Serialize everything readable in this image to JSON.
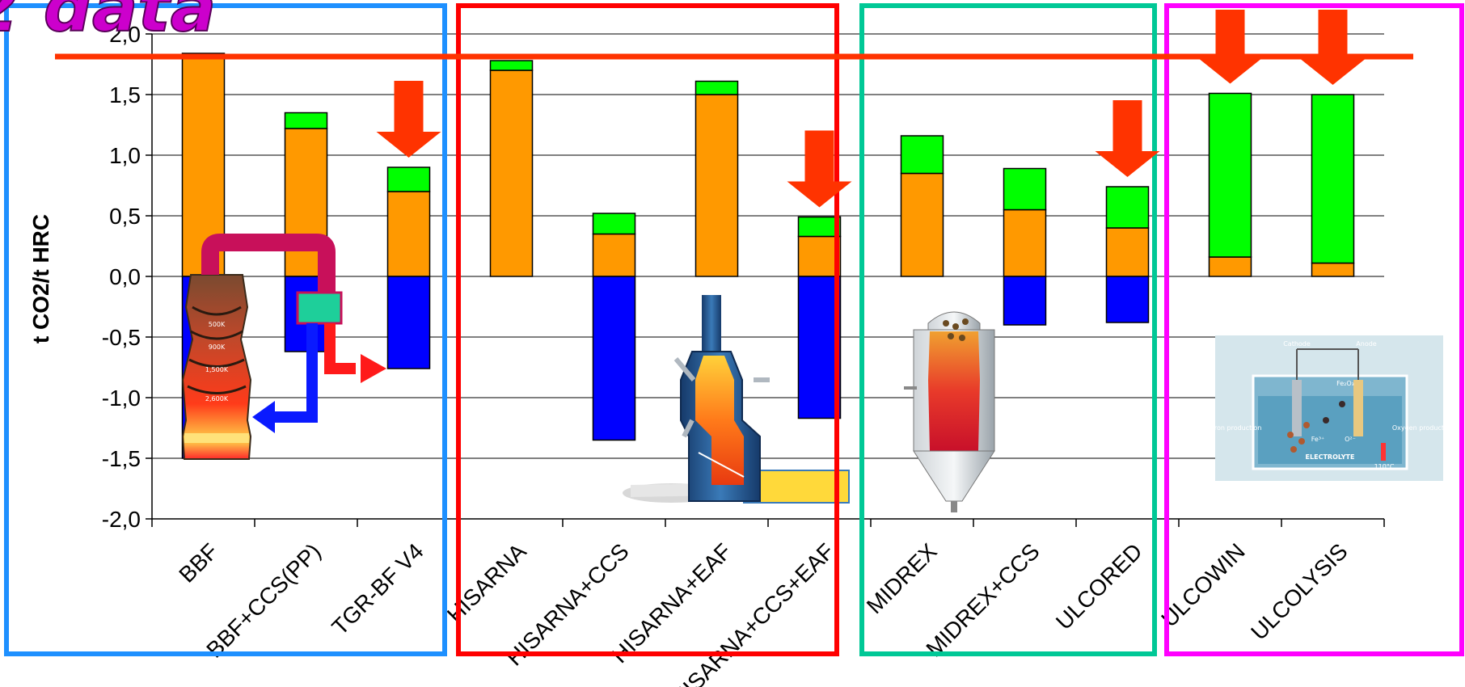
{
  "title_fragment": "2 data",
  "chart_data": {
    "type": "bar",
    "stacked": true,
    "title": "",
    "xlabel": "",
    "ylabel": "t CO2/t HRC",
    "ylim": [
      -2.0,
      2.0
    ],
    "yticks": [
      2.0,
      1.5,
      1.0,
      0.5,
      0.0,
      -0.5,
      -1.0,
      -1.5,
      -2.0
    ],
    "ytick_labels": [
      "2,0",
      "1,5",
      "1,0",
      "0,5",
      "0,0",
      "-0,5",
      "-1,0",
      "-1,5",
      "-2,0"
    ],
    "grid": true,
    "categories": [
      "BBF",
      "BBF+CCS(PP)",
      "TGR-BF V4",
      "HISARNA",
      "HISARNA+CCS",
      "HISARNA+EAF",
      "HISARNA+CCS+EAF",
      "MIDREX",
      "MIDREX+CCS",
      "ULCORED",
      "ULCOWIN",
      "ULCOLYSIS"
    ],
    "category_labels": [
      "BBF",
      "BBF+CCS(PP)",
      "TGR-BF V4",
      "HISARNA",
      "HISARNA+CCS",
      "HISARNA+EAF",
      "HISARNA+CCS+EAF",
      "MIDREX",
      "MIDREX+CCS",
      "ULCORED",
      "ULCOWIN",
      "ULCOLYSIS"
    ],
    "series": [
      {
        "color": "#ff9900",
        "values": [
          1.84,
          1.22,
          0.7,
          1.7,
          0.35,
          1.5,
          0.33,
          0.85,
          0.55,
          0.4,
          0.16,
          0.11
        ]
      },
      {
        "color": "#00ff00",
        "values": [
          0.0,
          0.13,
          0.2,
          0.08,
          0.17,
          0.11,
          0.16,
          0.31,
          0.34,
          0.34,
          1.35,
          1.39
        ]
      },
      {
        "color": "#0000ff",
        "values": [
          -1.5,
          -0.62,
          -0.76,
          0.0,
          -1.35,
          0.0,
          -1.17,
          0.0,
          -0.4,
          -0.38,
          0.0,
          0.0
        ]
      }
    ],
    "reference_line": 1.8,
    "group_boxes": [
      {
        "color": "#1e90ff",
        "categories": [
          "BBF",
          "BBF+CCS(PP)",
          "TGR-BF V4"
        ]
      },
      {
        "color": "#ff0000",
        "categories": [
          "HISARNA",
          "HISARNA+CCS",
          "HISARNA+EAF",
          "HISARNA+CCS+EAF"
        ]
      },
      {
        "color": "#00c896",
        "categories": [
          "MIDREX",
          "MIDREX+CCS",
          "ULCORED"
        ]
      },
      {
        "color": "#ff00ff",
        "categories": [
          "ULCOWIN",
          "ULCOLYSIS"
        ]
      }
    ],
    "down_arrows_above": [
      "TGR-BF V4",
      "HISARNA+CCS+EAF",
      "ULCORED",
      "ULCOWIN",
      "ULCOLYSIS"
    ],
    "colors": {
      "arrow": "#ff3300",
      "reference_line": "#ff3300"
    }
  },
  "illustrations": {
    "blast_furnace": {
      "icon": "blast-furnace-illustration",
      "labels": [
        "500K",
        "900K",
        "1,500K",
        "2,600K"
      ]
    },
    "hisarna_reactor": {
      "icon": "hisarna-reactor-illustration"
    },
    "midrex_reactor": {
      "icon": "midrex-shaft-furnace-illustration"
    },
    "electrolysis_cell": {
      "icon": "electrolysis-cell-illustration",
      "labels": {
        "cathode": "Cathode",
        "anode": "Anode",
        "fe2o3": "Fe₂O₃",
        "iron": "Iron production",
        "oxygen": "Oxygen production",
        "electrolyte": "ELECTROLYTE",
        "fe": "Fe³⁺",
        "o2": "O²⁻",
        "temp": "110°C"
      }
    }
  }
}
